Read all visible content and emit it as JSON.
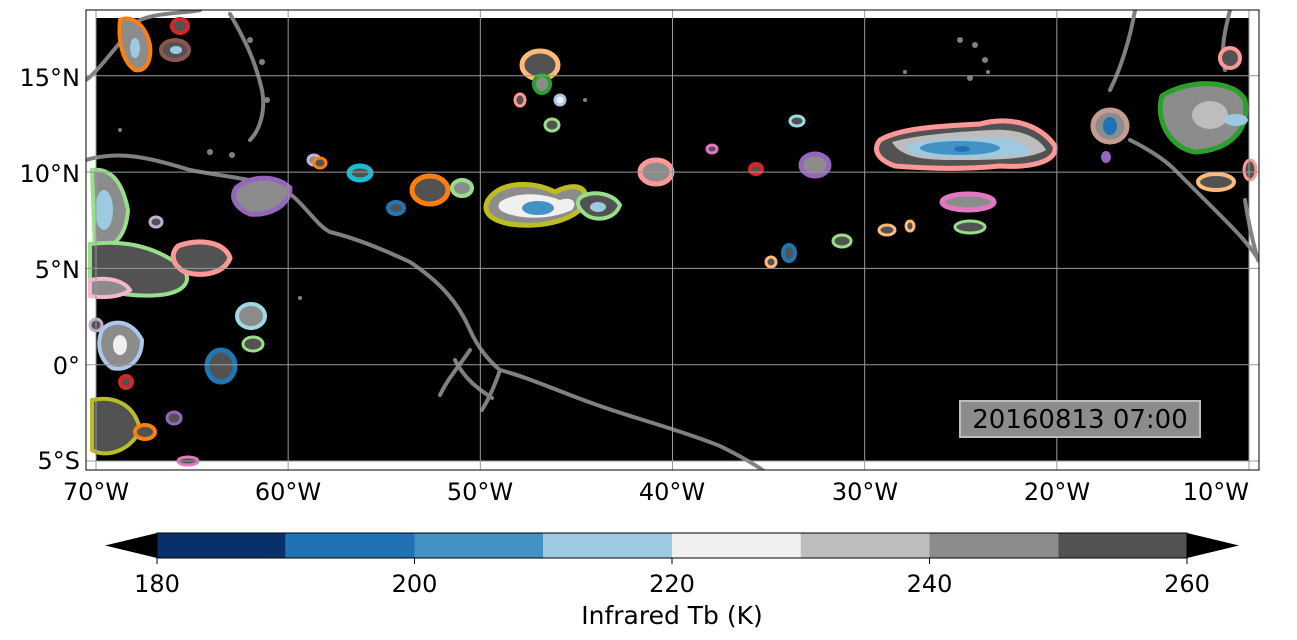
{
  "map": {
    "timestamp": "20160813 07:00",
    "lon_labels": [
      "70°W",
      "60°W",
      "50°W",
      "40°W",
      "30°W",
      "20°W",
      "10°W"
    ],
    "lat_labels": [
      "15°N",
      "10°N",
      "5°N",
      "0°",
      "5°S"
    ],
    "extent": {
      "lon": [
        -70,
        -10
      ],
      "lat": [
        -5,
        18
      ]
    },
    "grid": true,
    "background_color": "#000000",
    "coastline_color": "#808080"
  },
  "colorbar": {
    "label": "Infrared Tb (K)",
    "tick_labels": [
      "180",
      "200",
      "220",
      "240",
      "260"
    ],
    "levels": [
      180,
      190,
      200,
      210,
      220,
      230,
      240,
      250,
      260
    ],
    "colors": [
      "#08306b",
      "#2171b5",
      "#4292c6",
      "#9ecae1",
      "#f0f0f0",
      "#bdbdbd",
      "#8c8c8c",
      "#525252"
    ],
    "extend": "both"
  },
  "cloud_outline_colors": [
    "#ff9896",
    "#ffbb78",
    "#98df8a",
    "#aec7e8",
    "#2ca02c",
    "#ff7f0e",
    "#d62728",
    "#9467bd",
    "#1f77b4",
    "#e377c2",
    "#bcbd22",
    "#17becf",
    "#8c564b",
    "#c49c94",
    "#9edae5",
    "#f7b6d2",
    "#c5b0d5"
  ]
}
